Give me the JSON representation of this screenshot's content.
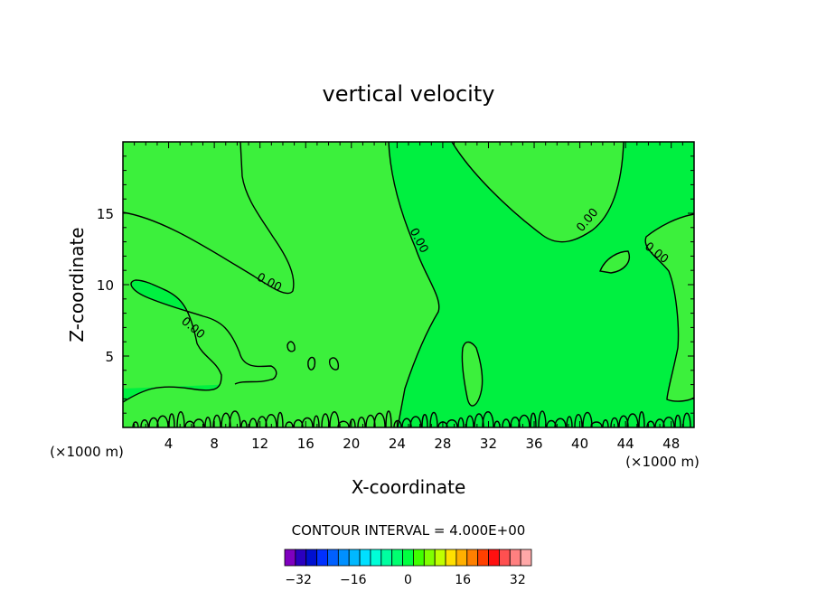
{
  "chart_data": {
    "type": "contour",
    "title": "vertical velocity",
    "xlabel": "X-coordinate",
    "ylabel": "Z-coordinate",
    "x_unit_label": "(×1000 m)",
    "y_unit_label": "(×1000 m)",
    "xlim": [
      0,
      50
    ],
    "ylim": [
      0,
      20
    ],
    "x_ticks": [
      4,
      8,
      12,
      16,
      20,
      24,
      28,
      32,
      36,
      40,
      44,
      48
    ],
    "y_ticks": [
      5,
      10,
      15
    ],
    "contour_labels": [
      "0.00",
      "0.00",
      "0.00",
      "0.00",
      "0.00",
      "0.00"
    ],
    "contour_interval_text": "CONTOUR INTERVAL = 4.000E+00",
    "colorbar": {
      "ticks": [
        -32,
        -16,
        0,
        16,
        32
      ],
      "tick_labels": [
        "−32",
        "−16",
        "0",
        "16",
        "32"
      ],
      "level_range": [
        -36,
        36
      ],
      "colors": [
        "#7f00bf",
        "#2b00bf",
        "#0010d0",
        "#0030ff",
        "#0060ff",
        "#0090ff",
        "#00b8ff",
        "#00e0ff",
        "#00ffd8",
        "#00ffa0",
        "#00ff70",
        "#00ff40",
        "#40ff00",
        "#80ff00",
        "#c0ff00",
        "#ffe000",
        "#ffb000",
        "#ff8000",
        "#ff4000",
        "#ff1010",
        "#ff5050",
        "#ff8080",
        "#ffa8a8"
      ]
    },
    "fill_colors": {
      "positive": "#3cf03c",
      "near_zero": "#00f040"
    }
  }
}
